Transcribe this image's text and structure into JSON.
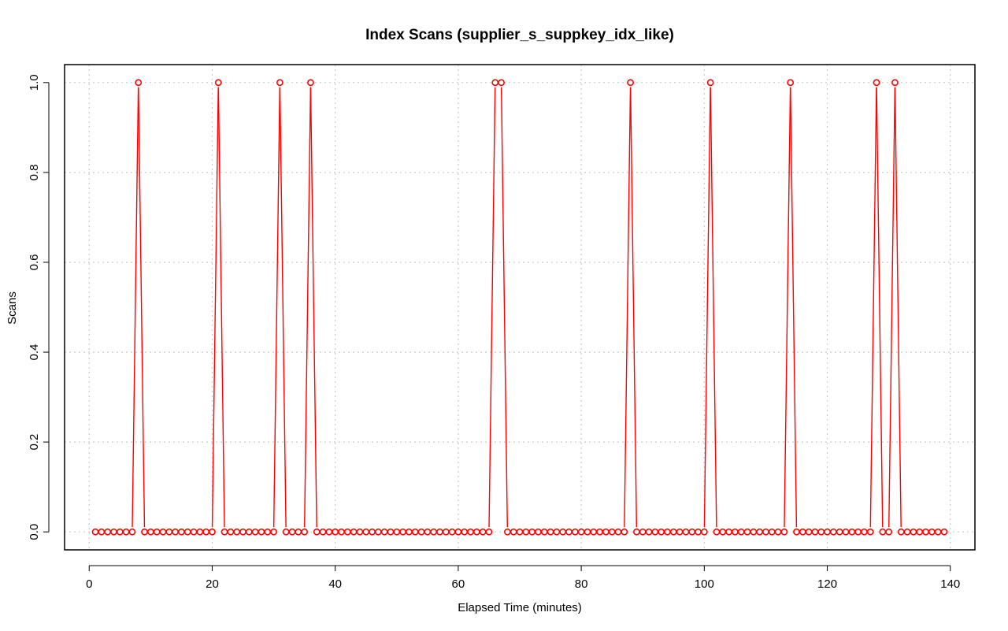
{
  "chart_data": {
    "type": "line",
    "title": "Index Scans (supplier_s_suppkey_idx_like)",
    "xlabel": "Elapsed Time (minutes)",
    "ylabel": "Scans",
    "xlim": [
      -4,
      144
    ],
    "ylim": [
      -0.04,
      1.04
    ],
    "x_ticks": [
      0,
      20,
      40,
      60,
      80,
      100,
      120,
      140
    ],
    "y_ticks": [
      0.0,
      0.2,
      0.4,
      0.6,
      0.8,
      1.0
    ],
    "y_tick_labels": [
      "0.0",
      "0.2",
      "0.4",
      "0.6",
      "0.8",
      "1.0"
    ],
    "grid": true,
    "legend": "none",
    "series_color": "#ff0000",
    "x_start": 1,
    "x_end": 139,
    "spike_x": [
      8,
      21,
      31,
      36,
      66,
      67,
      88,
      101,
      114,
      128,
      131
    ]
  }
}
